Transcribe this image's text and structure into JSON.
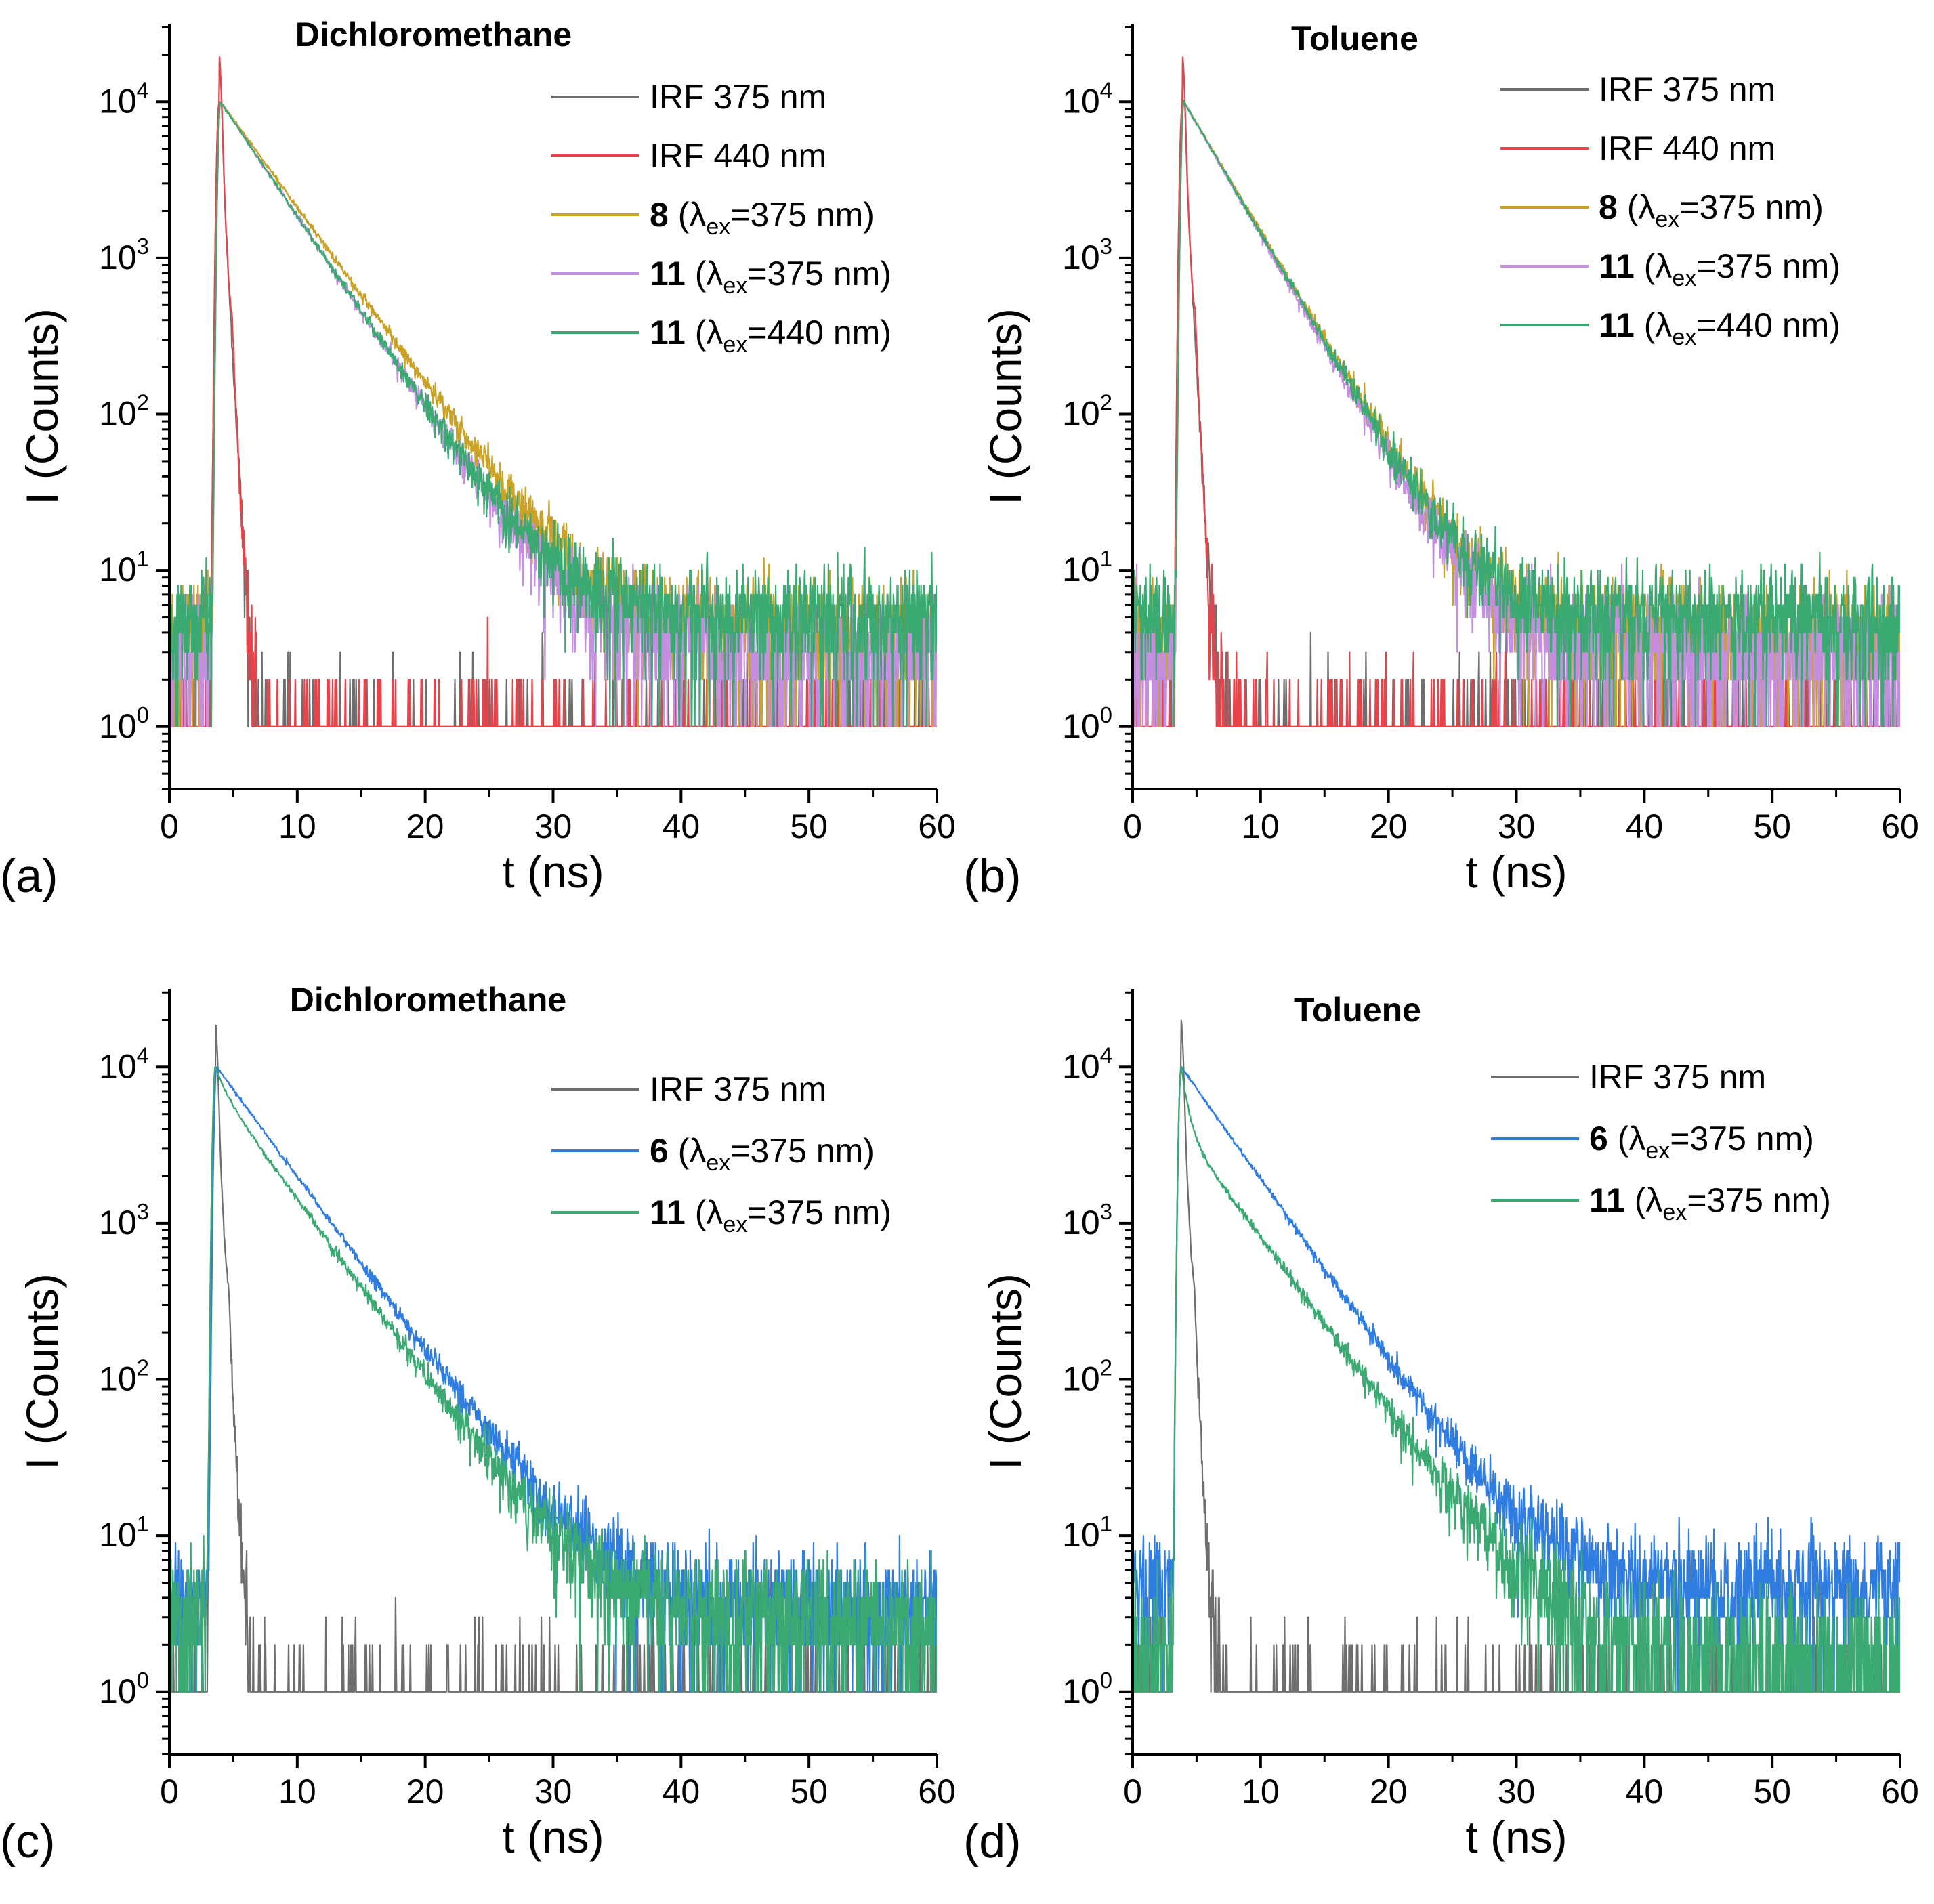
{
  "chart_data": [
    {
      "type": "line",
      "panel": "(a)",
      "title": "Dichloromethane",
      "xlabel": "t (ns)",
      "ylabel": "I (Counts)",
      "xlim": [
        0,
        60
      ],
      "ylim_log10": [
        -0.4,
        4.5
      ],
      "x_ticks": [
        0,
        10,
        20,
        30,
        40,
        50,
        60
      ],
      "y_ticks": [
        0,
        1,
        2,
        3,
        4
      ],
      "y_scale": "log",
      "legend_position": "top-right",
      "series": [
        {
          "legend_main": "IRF 375 nm",
          "legend_suffix": "",
          "color": "#6e6e6e",
          "kind": "irf",
          "peak": 3.9,
          "secondary": 0
        },
        {
          "legend_main": "IRF 440 nm",
          "legend_suffix": "",
          "color": "#e8434b",
          "kind": "irf",
          "peak": 3.9,
          "secondary": 2.15
        },
        {
          "legend_main": "8",
          "legend_suffix": "375 nm)",
          "color": "#c9a227",
          "kind": "decay",
          "peak": 4.0,
          "tau": 3.85,
          "tau2": 0,
          "a2": 0,
          "background": 4
        },
        {
          "legend_main": "11",
          "legend_suffix": "375 nm)",
          "color": "#c58ee0",
          "kind": "decay",
          "peak": 4.0,
          "tau": 3.55,
          "tau2": 0,
          "a2": 0,
          "background": 3
        },
        {
          "legend_main": "11",
          "legend_suffix": "440 nm)",
          "color": "#3aaa72",
          "kind": "decay",
          "peak": 4.0,
          "tau": 3.55,
          "tau2": 0,
          "a2": 0,
          "background": 5
        }
      ]
    },
    {
      "type": "line",
      "panel": "(b)",
      "title": "Toluene",
      "xlabel": "t (ns)",
      "ylabel": "I (Counts)",
      "xlim": [
        0,
        60
      ],
      "ylim_log10": [
        -0.4,
        4.5
      ],
      "x_ticks": [
        0,
        10,
        20,
        30,
        40,
        50,
        60
      ],
      "y_ticks": [
        0,
        1,
        2,
        3,
        4
      ],
      "y_scale": "log",
      "legend_position": "top-right",
      "series": [
        {
          "legend_main": "IRF 375 nm",
          "legend_suffix": "",
          "color": "#6e6e6e",
          "kind": "irf",
          "peak": 3.9,
          "secondary": 0
        },
        {
          "legend_main": "IRF 440 nm",
          "legend_suffix": "",
          "color": "#e8434b",
          "kind": "irf",
          "peak": 3.9,
          "secondary": 2.15
        },
        {
          "legend_main": "8",
          "legend_suffix": "375 nm)",
          "color": "#c9a227",
          "kind": "decay",
          "peak": 4.0,
          "tau": 3.15,
          "tau2": 0,
          "a2": 0,
          "background": 4
        },
        {
          "legend_main": "11",
          "legend_suffix": "375 nm)",
          "color": "#c58ee0",
          "kind": "decay",
          "peak": 4.0,
          "tau": 3.05,
          "tau2": 0,
          "a2": 0,
          "background": 3
        },
        {
          "legend_main": "11",
          "legend_suffix": "440 nm)",
          "color": "#3aaa72",
          "kind": "decay",
          "peak": 4.0,
          "tau": 3.1,
          "tau2": 0,
          "a2": 0,
          "background": 5
        }
      ]
    },
    {
      "type": "line",
      "panel": "(c)",
      "title": "Dichloromethane",
      "xlabel": "t (ns)",
      "ylabel": "I (Counts)",
      "xlim": [
        0,
        60
      ],
      "ylim_log10": [
        -0.4,
        4.5
      ],
      "x_ticks": [
        0,
        10,
        20,
        30,
        40,
        50,
        60
      ],
      "y_ticks": [
        0,
        1,
        2,
        3,
        4
      ],
      "y_scale": "log",
      "legend_position": "top-right",
      "series": [
        {
          "legend_main": "IRF 375 nm",
          "legend_suffix": "",
          "color": "#6e6e6e",
          "kind": "irf",
          "peak": 3.6,
          "secondary": 2.1
        },
        {
          "legend_main": "6",
          "legend_suffix": "375 nm)",
          "color": "#2f7de0",
          "kind": "decay",
          "peak": 3.7,
          "tau": 3.9,
          "tau2": 0,
          "a2": 0,
          "background": 3.5
        },
        {
          "legend_main": "11",
          "legend_suffix": "375 nm)",
          "color": "#3aaa72",
          "kind": "decay",
          "peak": 3.6,
          "tau": 3.85,
          "tau2": 0.8,
          "a2": 0.25,
          "background": 3
        }
      ]
    },
    {
      "type": "line",
      "panel": "(d)",
      "title": "Toluene",
      "xlabel": "t (ns)",
      "ylabel": "I (Counts)",
      "xlim": [
        0,
        60
      ],
      "ylim_log10": [
        -0.4,
        4.5
      ],
      "x_ticks": [
        0,
        10,
        20,
        30,
        40,
        50,
        60
      ],
      "y_ticks": [
        0,
        1,
        2,
        3,
        4
      ],
      "y_scale": "log",
      "legend_position": "top-right",
      "series": [
        {
          "legend_main": "IRF 375 nm",
          "legend_suffix": "",
          "color": "#6e6e6e",
          "kind": "irf",
          "peak": 3.8,
          "secondary": 2.1
        },
        {
          "legend_main": "6",
          "legend_suffix": "375 nm)",
          "color": "#2f7de0",
          "kind": "decay",
          "peak": 3.8,
          "tau": 3.75,
          "tau2": 0,
          "a2": 0,
          "background": 5
        },
        {
          "legend_main": "11",
          "legend_suffix": "375 nm)",
          "color": "#3aaa72",
          "kind": "decay",
          "peak": 3.8,
          "tau": 3.9,
          "tau2": 0.5,
          "a2": 0.6,
          "background": 1.5
        }
      ]
    }
  ],
  "legend_text": {
    "lambda_prefix": "(λ",
    "lambda_sub": "ex",
    "eq_prefix": "="
  }
}
